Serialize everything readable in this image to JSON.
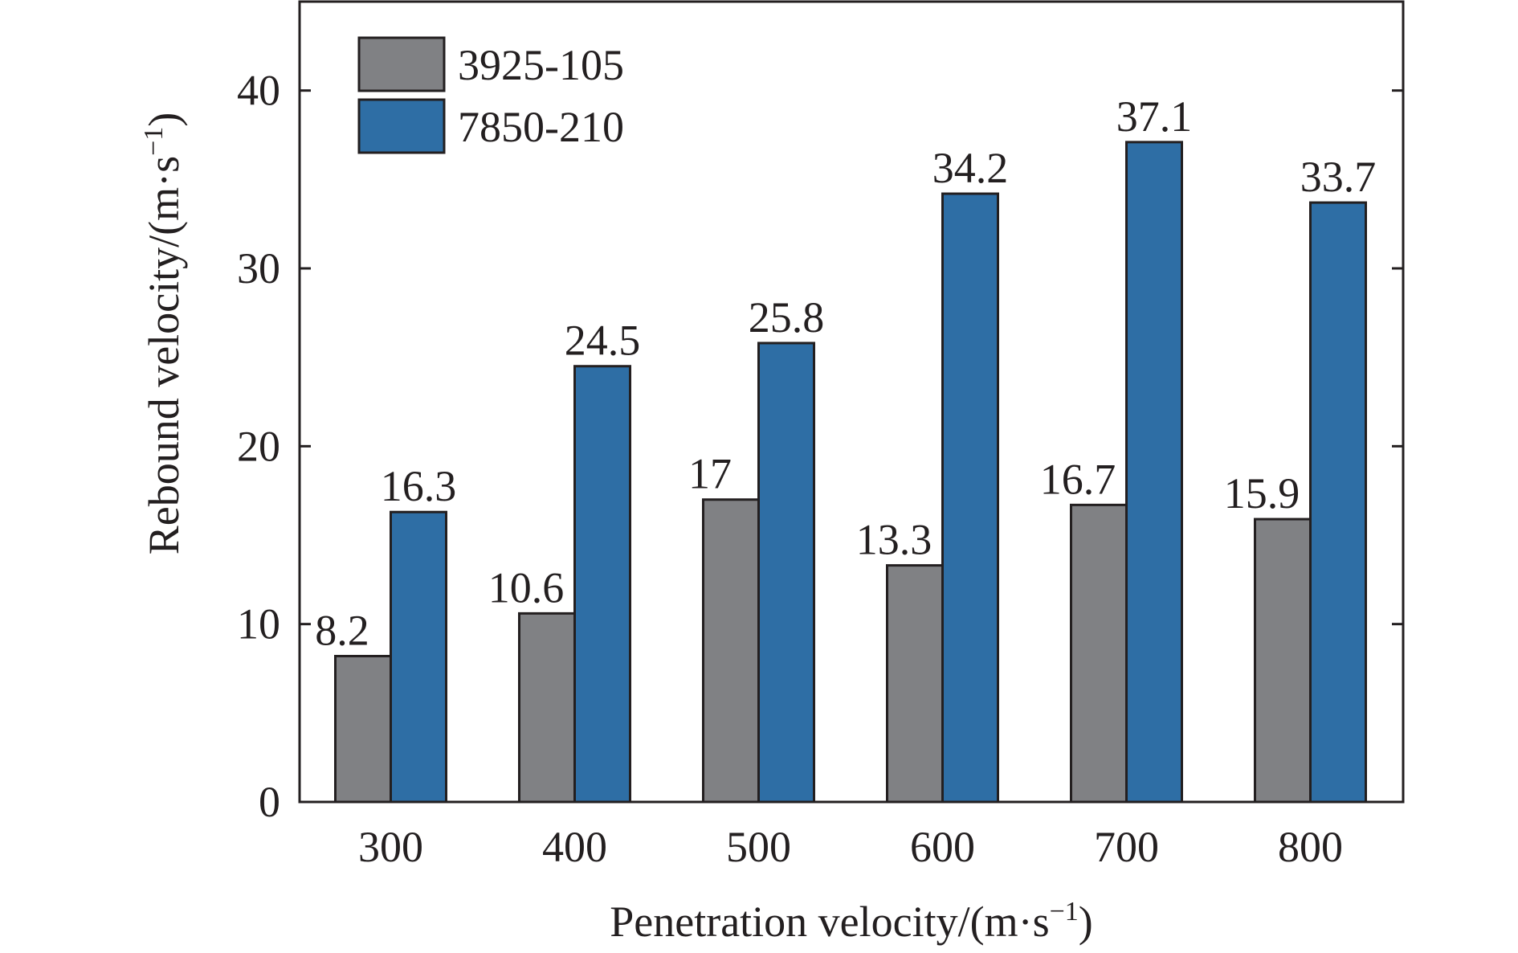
{
  "chart_data": {
    "type": "bar",
    "categories": [
      "300",
      "400",
      "500",
      "600",
      "700",
      "800"
    ],
    "series": [
      {
        "name": "3925-105",
        "color": "#808184",
        "values": [
          8.2,
          10.6,
          17,
          13.3,
          16.7,
          15.9
        ],
        "labels": [
          "8.2",
          "10.6",
          "17",
          "13.3",
          "16.7",
          "15.9"
        ]
      },
      {
        "name": "7850-210",
        "color": "#2e6ea5",
        "values": [
          16.3,
          24.5,
          25.8,
          34.2,
          37.1,
          33.7
        ],
        "labels": [
          "16.3",
          "24.5",
          "25.8",
          "34.2",
          "37.1",
          "33.7"
        ]
      }
    ],
    "xlabel": {
      "text": "Penetration velocity/(m·s",
      "sup": "−1",
      "close": ")"
    },
    "ylabel": {
      "text": "Rebound velocity/(m·s",
      "sup": "−1",
      "close": ")"
    },
    "ylim": [
      0,
      45
    ],
    "yticks": [
      0,
      10,
      20,
      30,
      40
    ],
    "ytick_labels": [
      "0",
      "10",
      "20",
      "30",
      "40"
    ],
    "grid": false,
    "legend_position": "top-left"
  }
}
